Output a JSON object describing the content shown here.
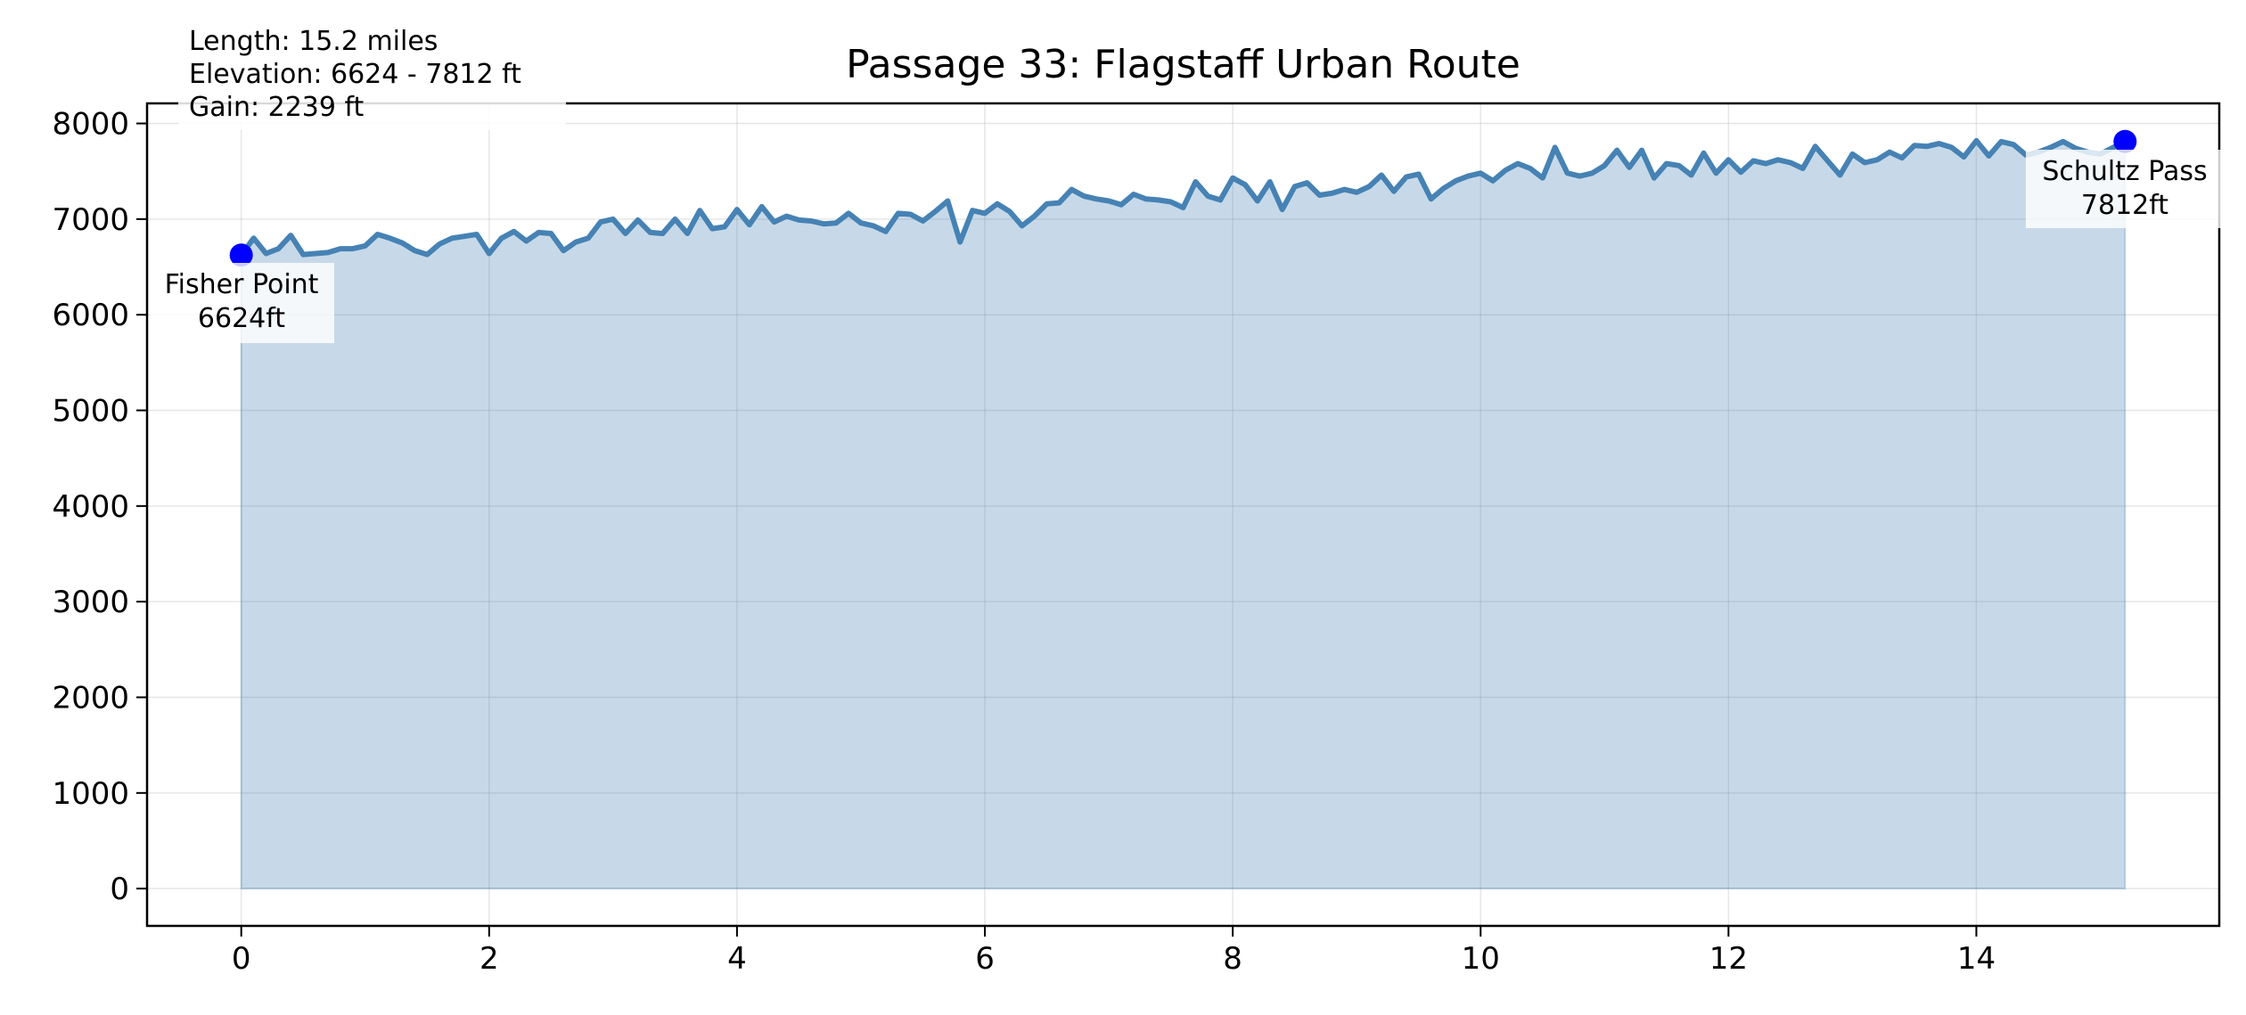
{
  "chart_data": {
    "type": "area",
    "title": "Passage 33: Flagstaff Urban Route",
    "xlabel": "",
    "ylabel": "",
    "xlim": [
      -0.76,
      15.96
    ],
    "ylim": [
      -390,
      8210
    ],
    "x_ticks": [
      0,
      2,
      4,
      6,
      8,
      10,
      12,
      14
    ],
    "y_ticks": [
      0,
      1000,
      2000,
      3000,
      4000,
      5000,
      6000,
      7000,
      8000
    ],
    "x_tick_labels": [
      "0",
      "2",
      "4",
      "6",
      "8",
      "10",
      "12",
      "14"
    ],
    "y_tick_labels": [
      "0",
      "1000",
      "2000",
      "3000",
      "4000",
      "5000",
      "6000",
      "7000",
      "8000"
    ],
    "grid": true,
    "line_color": "#4682b4",
    "fill_color": "#4682b4",
    "fill_opacity": 0.3,
    "marker_color": "#0000ff",
    "series": [
      {
        "x": [
          0,
          0.1,
          0.2,
          0.3,
          0.4,
          0.5,
          0.6,
          0.7,
          0.8,
          0.9,
          1.0,
          1.1,
          1.2,
          1.3,
          1.4,
          1.5,
          1.6,
          1.7,
          1.8,
          1.9,
          2.0,
          2.1,
          2.2,
          2.3,
          2.4,
          2.5,
          2.6,
          2.7,
          2.8,
          2.9,
          3.0,
          3.1,
          3.2,
          3.3,
          3.4,
          3.5,
          3.6,
          3.7,
          3.8,
          3.9,
          4.0,
          4.1,
          4.2,
          4.3,
          4.4,
          4.5,
          4.6,
          4.7,
          4.8,
          4.9,
          5.0,
          5.1,
          5.2,
          5.3,
          5.4,
          5.5,
          5.6,
          5.7,
          5.8,
          5.9,
          6.0,
          6.1,
          6.2,
          6.3,
          6.4,
          6.5,
          6.6,
          6.7,
          6.8,
          6.9,
          7.0,
          7.1,
          7.2,
          7.3,
          7.4,
          7.5,
          7.6,
          7.7,
          7.8,
          7.9,
          8.0,
          8.1,
          8.2,
          8.3,
          8.4,
          8.5,
          8.6,
          8.7,
          8.8,
          8.9,
          9.0,
          9.1,
          9.2,
          9.3,
          9.4,
          9.5,
          9.6,
          9.7,
          9.8,
          9.9,
          10.0,
          10.1,
          10.2,
          10.3,
          10.4,
          10.5,
          10.6,
          10.7,
          10.8,
          10.9,
          11.0,
          11.1,
          11.2,
          11.3,
          11.4,
          11.5,
          11.6,
          11.7,
          11.8,
          11.9,
          12.0,
          12.1,
          12.2,
          12.3,
          12.4,
          12.5,
          12.6,
          12.7,
          12.8,
          12.9,
          13.0,
          13.1,
          13.2,
          13.3,
          13.4,
          13.5,
          13.6,
          13.7,
          13.8,
          13.9,
          14.0,
          14.1,
          14.2,
          14.3,
          14.4,
          14.5,
          14.6,
          14.7,
          14.8,
          14.9,
          15.0,
          15.2
        ],
        "values": [
          6624,
          6800,
          6640,
          6690,
          6830,
          6630,
          6640,
          6650,
          6690,
          6690,
          6720,
          6840,
          6800,
          6750,
          6670,
          6630,
          6740,
          6800,
          6820,
          6840,
          6640,
          6800,
          6870,
          6770,
          6860,
          6850,
          6670,
          6760,
          6800,
          6970,
          7000,
          6850,
          6990,
          6860,
          6850,
          7000,
          6850,
          7090,
          6900,
          6920,
          7100,
          6940,
          7130,
          6970,
          7030,
          6990,
          6980,
          6950,
          6960,
          7060,
          6960,
          6930,
          6870,
          7060,
          7050,
          6980,
          7080,
          7190,
          6760,
          7090,
          7060,
          7160,
          7080,
          6930,
          7030,
          7160,
          7170,
          7310,
          7240,
          7210,
          7190,
          7150,
          7260,
          7210,
          7200,
          7180,
          7120,
          7390,
          7240,
          7200,
          7430,
          7360,
          7190,
          7390,
          7100,
          7340,
          7380,
          7250,
          7270,
          7310,
          7280,
          7340,
          7460,
          7290,
          7440,
          7470,
          7210,
          7320,
          7400,
          7450,
          7480,
          7400,
          7510,
          7580,
          7530,
          7430,
          7750,
          7480,
          7450,
          7480,
          7560,
          7720,
          7540,
          7720,
          7430,
          7580,
          7560,
          7460,
          7690,
          7480,
          7620,
          7490,
          7610,
          7580,
          7620,
          7590,
          7530,
          7760,
          7610,
          7460,
          7680,
          7590,
          7620,
          7700,
          7640,
          7770,
          7760,
          7790,
          7750,
          7650,
          7820,
          7660,
          7810,
          7780,
          7670,
          7700,
          7750,
          7810,
          7740,
          7700,
          7680,
          7812
        ]
      }
    ],
    "annotations": [
      {
        "name": "Fisher Point",
        "x": 0,
        "y": 6624,
        "text_line1": "Fisher Point",
        "text_line2": "6624ft"
      },
      {
        "name": "Schultz Pass",
        "x": 15.2,
        "y": 7812,
        "text_line1": "Schultz Pass",
        "text_line2": "7812ft"
      }
    ],
    "stats_box": {
      "line1": "Length: 15.2 miles",
      "line2": "Elevation: 6624 - 7812 ft",
      "line3": "Gain: 2239 ft"
    }
  }
}
